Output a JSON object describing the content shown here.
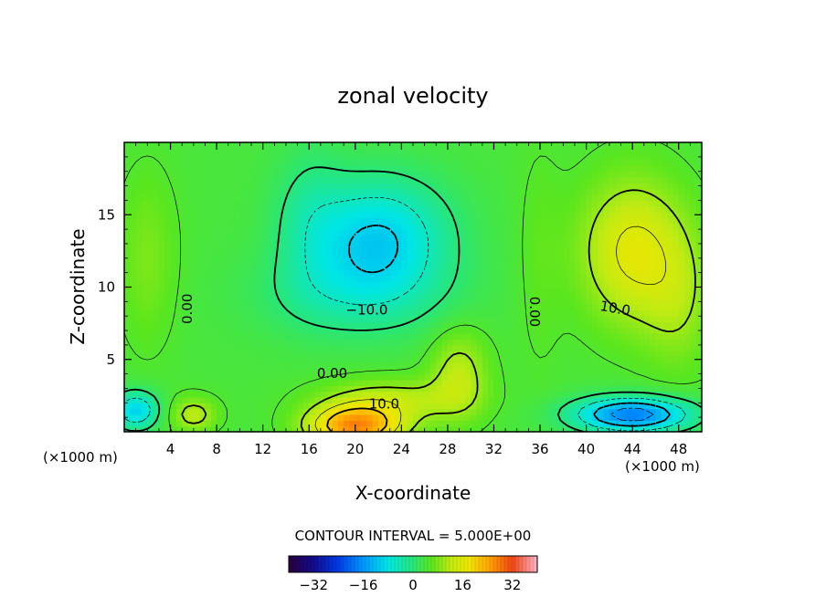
{
  "chart_data": {
    "type": "heatmap",
    "title": "zonal velocity",
    "xlabel": "X-coordinate",
    "ylabel": "Z-coordinate",
    "x_unit_left": "(×1000 m)",
    "x_unit_right": "(×1000 m)",
    "xlim": [
      0,
      50
    ],
    "ylim": [
      0,
      20
    ],
    "x_ticks": [
      4,
      8,
      12,
      16,
      20,
      24,
      28,
      32,
      36,
      40,
      44,
      48
    ],
    "y_ticks": [
      5,
      10,
      15
    ],
    "x_tick_labels": [
      "4",
      "8",
      "12",
      "16",
      "20",
      "24",
      "28",
      "32",
      "36",
      "40",
      "44",
      "48"
    ],
    "y_tick_labels": [
      "5",
      "10",
      "15"
    ],
    "contour_interval_text": "CONTOUR INTERVAL = 5.000E+00",
    "contour_labels": [
      {
        "text": "0.00",
        "x": 5.5,
        "z": 8.5,
        "rotate": -90
      },
      {
        "text": "−10.0",
        "x": 21.0,
        "z": 8.4,
        "rotate": 0
      },
      {
        "text": "0.00",
        "x": 18.0,
        "z": 4.0,
        "rotate": 0
      },
      {
        "text": "10.0",
        "x": 22.5,
        "z": 1.9,
        "rotate": 0
      },
      {
        "text": "0.00",
        "x": 35.5,
        "z": 8.3,
        "rotate": 90
      },
      {
        "text": "10.0",
        "x": 42.5,
        "z": 8.5,
        "rotate": 10
      }
    ],
    "colorbar": {
      "range": [
        -40,
        40
      ],
      "ticks": [
        -32,
        -16,
        0,
        16,
        32
      ],
      "tick_labels": [
        "−32",
        "−16",
        "0",
        "16",
        "32"
      ]
    },
    "field_features": [
      {
        "x": 22,
        "z": 13.5,
        "sx": 6,
        "sz": 4,
        "amp": -14
      },
      {
        "x": 20,
        "z": 9.5,
        "sx": 8,
        "sz": 3,
        "amp": -6
      },
      {
        "x": 44,
        "z": 12.5,
        "sx": 4.5,
        "sz": 5,
        "amp": 12
      },
      {
        "x": 48,
        "z": 9,
        "sx": 3,
        "sz": 5,
        "amp": 5
      },
      {
        "x": 20,
        "z": 0.4,
        "sx": 4,
        "sz": 1.4,
        "amp": 22
      },
      {
        "x": 23,
        "z": 2.2,
        "sx": 6,
        "sz": 1.5,
        "amp": 8
      },
      {
        "x": 29,
        "z": 4,
        "sx": 2.5,
        "sz": 3,
        "amp": 8
      },
      {
        "x": 44,
        "z": 1.2,
        "sx": 5,
        "sz": 1.2,
        "amp": -22
      },
      {
        "x": 1,
        "z": 1.5,
        "sx": 2,
        "sz": 1.3,
        "amp": -14
      },
      {
        "x": 6,
        "z": 1.2,
        "sx": 2,
        "sz": 1.2,
        "amp": 8
      },
      {
        "x": 16,
        "z": 15,
        "sx": 3,
        "sz": 5,
        "amp": -4
      },
      {
        "x": 2,
        "z": 12,
        "sx": 2.5,
        "sz": 6,
        "amp": 4
      },
      {
        "x": 36,
        "z": 12,
        "sx": 2,
        "sz": 8,
        "amp": 2
      }
    ],
    "grid": false,
    "legend": "colorbar-bottom"
  },
  "colors": {
    "frame": "#000000",
    "text": "#000000",
    "background": "#ffffff"
  }
}
